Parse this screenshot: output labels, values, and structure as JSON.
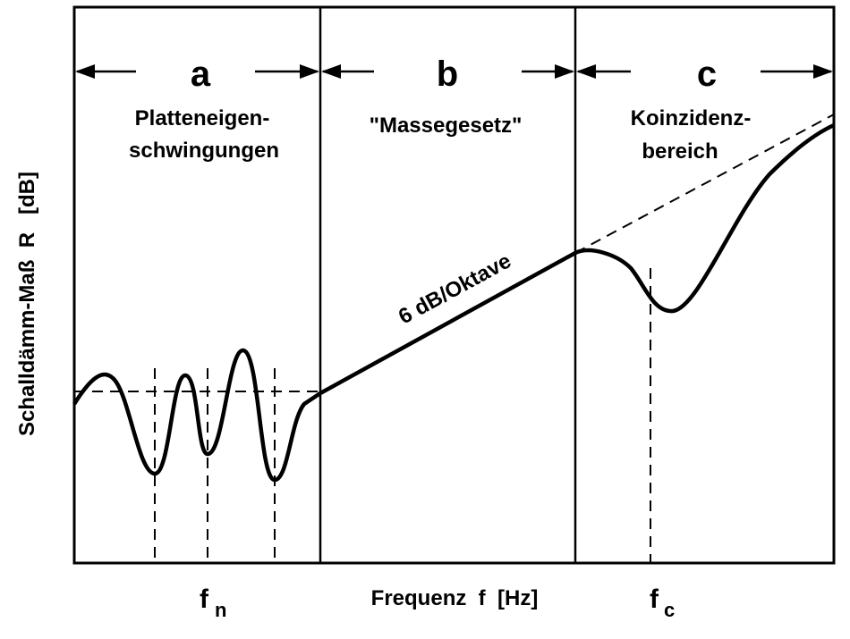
{
  "regions": [
    {
      "letter": "a",
      "line1": "Platteneigen-",
      "line2": "schwingungen"
    },
    {
      "letter": "b",
      "line1": "\"Massegesetz\"",
      "line2": ""
    },
    {
      "letter": "c",
      "line1": "Koinzidenz-",
      "line2": "bereich"
    }
  ],
  "slope_label": "6 dB/Oktave",
  "y_axis_label": "Schalldämm-Maß  R   [dB]",
  "x_axis_label": "Frequenz  f  [Hz]",
  "fn_label": {
    "base": "f",
    "sub": "n"
  },
  "fc_label": {
    "base": "f",
    "sub": "c"
  }
}
